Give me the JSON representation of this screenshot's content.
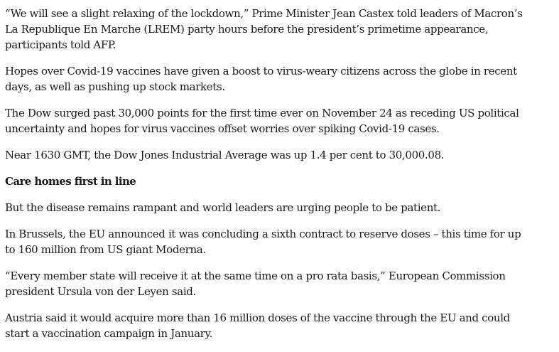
{
  "article": {
    "paragraphs_top": [
      "“We will see a slight relaxing of the lockdown,” Prime Minister Jean Castex told leaders of Macron’s La Republique En Marche (LREM) party hours before the president’s primetime appearance, participants told AFP.",
      "Hopes over Covid-19 vaccines have given a boost to virus-weary citizens across the globe in recent days, as well as pushing up stock markets.",
      "The Dow surged past 30,000 points for the first time ever on November 24 as receding US political uncertainty and hopes for virus vaccines offset worries over spiking Covid-19 cases.",
      "Near 1630 GMT, the Dow Jones Industrial Average was up 1.4 per cent to 30,000.08."
    ],
    "subheading": "Care homes first in line",
    "paragraphs_bottom": [
      "But the disease remains rampant and world leaders are urging people to be patient.",
      "In Brussels, the EU announced it was concluding a sixth contract to reserve doses – this time for up to 160 million from US giant Moderna.",
      "“Every member state will receive it at the same time on a pro rata basis,” European Commission president Ursula von der Leyen said.",
      "Austria said it would acquire more than 16 million doses of the vaccine through the EU and could start a vaccination campaign in January."
    ]
  }
}
